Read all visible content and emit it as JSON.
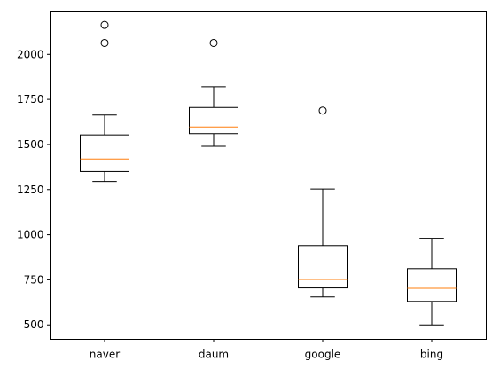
{
  "chart_data": {
    "type": "boxplot",
    "title": "",
    "xlabel": "",
    "ylabel": "",
    "categories": [
      "naver",
      "daum",
      "google",
      "bing"
    ],
    "ylim": [
      420,
      2240
    ],
    "yticks": [
      500,
      750,
      1000,
      1250,
      1500,
      1750,
      2000
    ],
    "grid": false,
    "boxes": [
      {
        "label": "naver",
        "whisker_low": 1295,
        "q1": 1350,
        "median": 1420,
        "q3": 1553,
        "whisker_high": 1663,
        "fliers": [
          2063,
          2163
        ]
      },
      {
        "label": "daum",
        "whisker_low": 1490,
        "q1": 1560,
        "median": 1597,
        "q3": 1705,
        "whisker_high": 1820,
        "fliers": [
          2063
        ]
      },
      {
        "label": "google",
        "whisker_low": 655,
        "q1": 705,
        "median": 752,
        "q3": 940,
        "whisker_high": 1253,
        "fliers": [
          1688
        ]
      },
      {
        "label": "bing",
        "whisker_low": 500,
        "q1": 630,
        "median": 703,
        "q3": 812,
        "whisker_high": 980,
        "fliers": []
      }
    ],
    "colors": {
      "box": "#000000",
      "median": "#ff7f0e",
      "flier": "#000000",
      "axis": "#000000"
    }
  }
}
